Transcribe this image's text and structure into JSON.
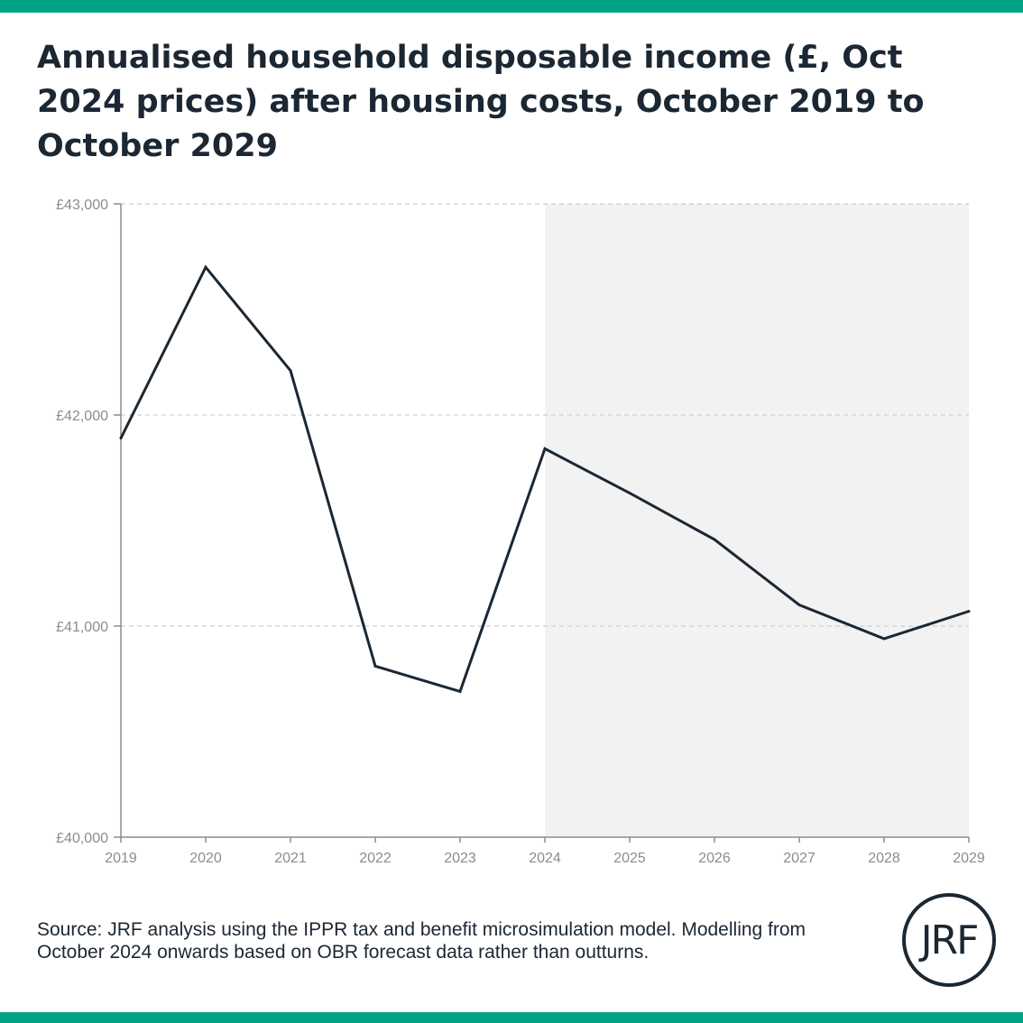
{
  "header": {
    "title": "Annualised household disposable income (£, Oct 2024 prices) after housing costs, October 2019 to October 2029"
  },
  "footer": {
    "source": "Source: JRF analysis using the IPPR tax and benefit microsimulation model. Modelling from October 2024 onwards based on OBR forecast data rather than outturns.",
    "logo_text": "JRF"
  },
  "colors": {
    "accent_bar": "#00a383",
    "line": "#1b2733",
    "forecast_shading": "#f2f2f2"
  },
  "chart_data": {
    "type": "line",
    "title": "Annualised household disposable income (£, Oct 2024 prices) after housing costs, October 2019 to October 2029",
    "x": [
      2019,
      2020,
      2021,
      2022,
      2023,
      2024,
      2025,
      2026,
      2027,
      2028,
      2029
    ],
    "series": [
      {
        "values": [
          41890,
          42700,
          42210,
          40810,
          40690,
          41840,
          41630,
          41410,
          41100,
          40940,
          41070
        ]
      }
    ],
    "x_ticks": [
      "2019",
      "2020",
      "2021",
      "2022",
      "2023",
      "2024",
      "2025",
      "2026",
      "2027",
      "2028",
      "2029"
    ],
    "y_ticks": [
      40000,
      41000,
      42000,
      43000
    ],
    "y_tick_labels": [
      "£40,000",
      "£41,000",
      "£42,000",
      "£43,000"
    ],
    "xlim": [
      2019,
      2029
    ],
    "ylim": [
      40000,
      43000
    ],
    "forecast_shaded_from": 2024,
    "grid": "horizontal dashed",
    "legend": "none"
  }
}
